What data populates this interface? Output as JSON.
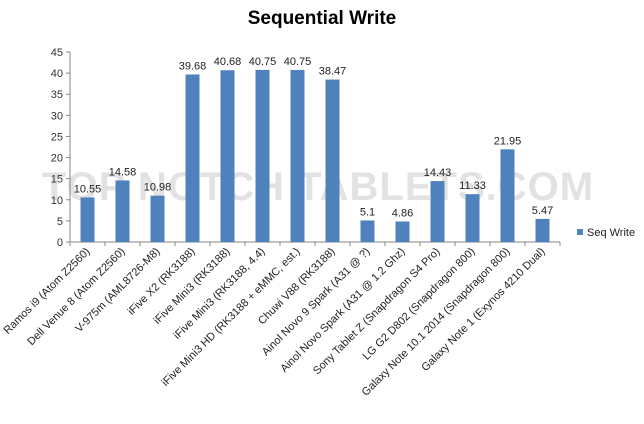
{
  "chart_data": {
    "type": "bar",
    "title": "Sequential Write",
    "watermark": "TOP NOTCH TABLETS.COM",
    "categories": [
      "Ramos i9 (Atom Z2560)",
      "Dell Venue 8 (Atom Z2560)",
      "V-975m (AML8726-M8)",
      "iFive X2 (RK3188)",
      "iFive Mini3 (RK3188)",
      "iFive Mini3 (RK3188, 4.4)",
      "iFive Mini3 HD (RK3188 + eMMC, est.)",
      "Chuwi V88 (RK3188)",
      "Ainol Novo 9 Spark (A31 @ ?)",
      "Ainol Novo Spark (A31 @ 1.2 Ghz)",
      "Sony Tablet Z (Snapdragon S4 Pro)",
      "LG G2 D802 (Snapdragon 800)",
      "Galaxy Note 10.1 2014 (Snapdragon 800)",
      "Galaxy Note 1 (Exynos 4210 Dual)"
    ],
    "series": [
      {
        "name": "Seq Write",
        "values": [
          10.55,
          14.58,
          10.98,
          39.68,
          40.68,
          40.75,
          40.75,
          38.47,
          5.1,
          4.86,
          14.43,
          11.33,
          21.95,
          5.47
        ],
        "labels": [
          "10.55",
          "14.58",
          "10.98",
          "39.68",
          "40.68",
          "40.75",
          "40.75",
          "38.47",
          "5.1",
          "4.86",
          "14.43",
          "11.33",
          "21.95",
          "5.47"
        ]
      }
    ],
    "ylim": [
      0,
      45
    ],
    "yticks": [
      "0",
      "5",
      "10",
      "15",
      "20",
      "25",
      "30",
      "35",
      "40",
      "45"
    ],
    "grid": false,
    "legend": "right",
    "colors": {
      "bar": "#4f81bd",
      "axis": "#868686"
    }
  }
}
